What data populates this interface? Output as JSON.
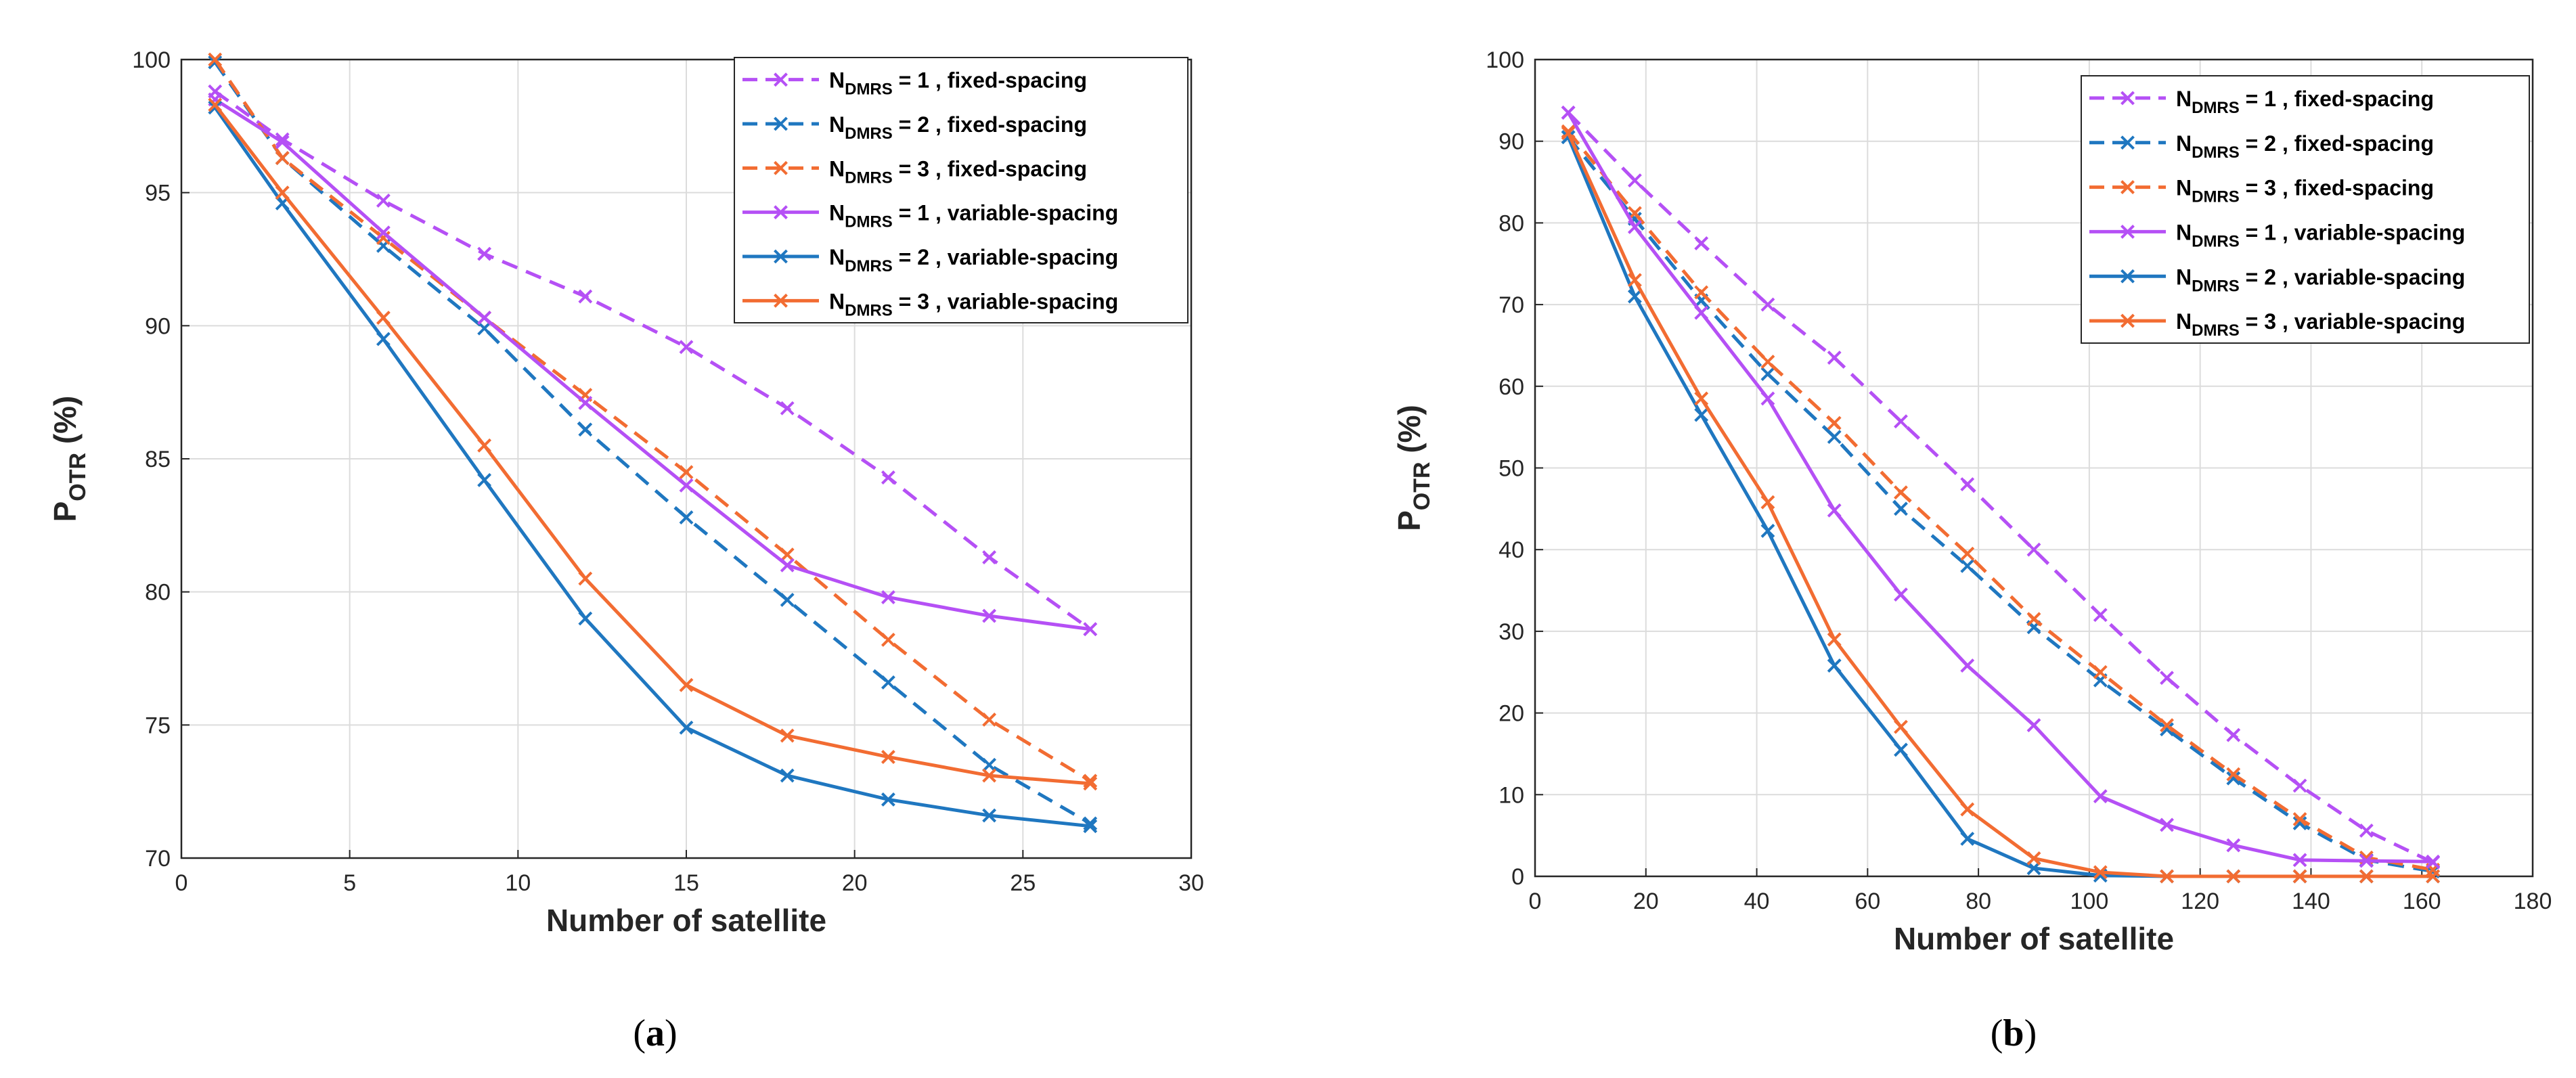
{
  "chart_data": [
    {
      "type": "line",
      "caption_letter": "a",
      "xlabel": "Number of satellite",
      "ylabel_main": "P",
      "ylabel_sub": "OTR",
      "ylabel_unit": "(%)",
      "xlim": [
        0,
        30
      ],
      "ylim": [
        70,
        100
      ],
      "xticks": [
        0,
        5,
        10,
        15,
        20,
        25,
        30
      ],
      "yticks": [
        70,
        75,
        80,
        85,
        90,
        95,
        100
      ],
      "x": [
        1,
        3,
        6,
        9,
        12,
        15,
        18,
        21,
        24,
        27
      ],
      "legend_location": "top-right",
      "series": [
        {
          "n": "1",
          "spacing": "fixed-spacing",
          "color": "#b550f5",
          "dashed": true,
          "values": [
            98.8,
            97.0,
            94.7,
            92.7,
            91.1,
            89.2,
            86.9,
            84.3,
            81.3,
            78.6
          ]
        },
        {
          "n": "2",
          "spacing": "fixed-spacing",
          "color": "#1f77c0",
          "dashed": true,
          "values": [
            99.9,
            96.3,
            93.0,
            89.9,
            86.1,
            82.8,
            79.7,
            76.6,
            73.5,
            71.3
          ]
        },
        {
          "n": "3",
          "spacing": "fixed-spacing",
          "color": "#f26c32",
          "dashed": true,
          "values": [
            100.0,
            96.3,
            93.3,
            90.3,
            87.4,
            84.5,
            81.4,
            78.2,
            75.2,
            72.9
          ]
        },
        {
          "n": "1",
          "spacing": "variable-spacing",
          "color": "#b550f5",
          "dashed": false,
          "values": [
            98.5,
            96.9,
            93.5,
            90.3,
            87.1,
            84.0,
            81.0,
            79.8,
            79.1,
            78.6
          ]
        },
        {
          "n": "2",
          "spacing": "variable-spacing",
          "color": "#1f77c0",
          "dashed": false,
          "values": [
            98.2,
            94.6,
            89.5,
            84.2,
            79.0,
            74.9,
            73.1,
            72.2,
            71.6,
            71.2
          ]
        },
        {
          "n": "3",
          "spacing": "variable-spacing",
          "color": "#f26c32",
          "dashed": false,
          "values": [
            98.3,
            95.0,
            90.3,
            85.5,
            80.5,
            76.5,
            74.6,
            73.8,
            73.1,
            72.8
          ]
        }
      ]
    },
    {
      "type": "line",
      "caption_letter": "b",
      "xlabel": "Number of satellite",
      "ylabel_main": "P",
      "ylabel_sub": "OTR",
      "ylabel_unit": "(%)",
      "xlim": [
        0,
        180
      ],
      "ylim": [
        0,
        100
      ],
      "xticks": [
        0,
        20,
        40,
        60,
        80,
        100,
        120,
        140,
        160,
        180
      ],
      "yticks": [
        0,
        10,
        20,
        30,
        40,
        50,
        60,
        70,
        80,
        90,
        100
      ],
      "x": [
        6,
        18,
        30,
        42,
        54,
        66,
        78,
        90,
        102,
        114,
        126,
        138,
        150,
        162
      ],
      "legend_location": "top-right",
      "series": [
        {
          "n": "1",
          "spacing": "fixed-spacing",
          "color": "#b550f5",
          "dashed": true,
          "values": [
            93.5,
            85.2,
            77.5,
            70.0,
            63.5,
            55.7,
            48.0,
            40.0,
            32.0,
            24.3,
            17.3,
            11.1,
            5.6,
            1.7
          ]
        },
        {
          "n": "2",
          "spacing": "fixed-spacing",
          "color": "#1f77c0",
          "dashed": true,
          "values": [
            90.5,
            80.5,
            70.5,
            61.5,
            53.8,
            45.0,
            38.0,
            30.5,
            24.0,
            18.0,
            12.0,
            6.5,
            2.0,
            0.6
          ]
        },
        {
          "n": "3",
          "spacing": "fixed-spacing",
          "color": "#f26c32",
          "dashed": true,
          "values": [
            91.2,
            81.2,
            71.5,
            63.0,
            55.5,
            47.0,
            39.5,
            31.5,
            25.0,
            18.5,
            12.5,
            7.0,
            2.3,
            0.8
          ]
        },
        {
          "n": "1",
          "spacing": "variable-spacing",
          "color": "#b550f5",
          "dashed": false,
          "values": [
            93.5,
            79.5,
            69.0,
            58.5,
            44.8,
            34.5,
            25.8,
            18.5,
            9.8,
            6.3,
            3.8,
            2.0,
            1.9,
            1.8
          ]
        },
        {
          "n": "2",
          "spacing": "variable-spacing",
          "color": "#1f77c0",
          "dashed": false,
          "values": [
            90.5,
            71.0,
            56.5,
            42.3,
            25.8,
            15.5,
            4.6,
            1.0,
            0.1,
            0.0,
            0.0,
            0.0,
            0.0,
            0.0
          ]
        },
        {
          "n": "3",
          "spacing": "variable-spacing",
          "color": "#f26c32",
          "dashed": false,
          "values": [
            91.0,
            73.0,
            58.5,
            45.8,
            29.0,
            18.3,
            8.2,
            2.2,
            0.5,
            0.0,
            0.0,
            0.0,
            0.0,
            0.0
          ]
        }
      ]
    }
  ],
  "legend_label_prefix": "N",
  "legend_label_sub": "DMRS",
  "legend_label_eq": "= ",
  "legend_label_sep": " , "
}
